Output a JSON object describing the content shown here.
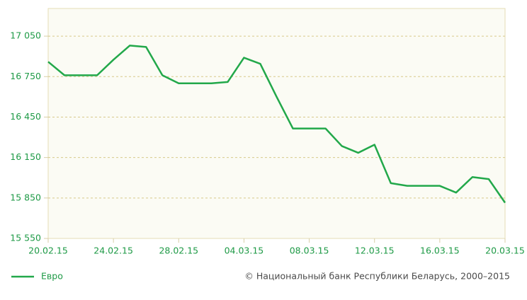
{
  "chart_data": {
    "type": "line",
    "source": "© Национальный банк Республики Беларусь, 2000–2015",
    "categories": [
      "20.02.15",
      null,
      null,
      null,
      "24.02.15",
      null,
      null,
      null,
      "28.02.15",
      null,
      null,
      null,
      "04.03.15",
      null,
      null,
      null,
      "08.03.15",
      null,
      null,
      null,
      "12.03.15",
      null,
      null,
      null,
      "16.03.15",
      null,
      null,
      null,
      "20.03.15"
    ],
    "series": [
      {
        "name": "Евро",
        "color": "#22a84a",
        "values": [
          16860,
          16760,
          16760,
          16760,
          16875,
          16980,
          16970,
          16760,
          16700,
          16700,
          16700,
          16710,
          16890,
          16845,
          16600,
          16365,
          16365,
          16365,
          16235,
          16185,
          16245,
          15960,
          15940,
          15940,
          15940,
          15890,
          16005,
          15990,
          15815
        ]
      }
    ],
    "ylim": [
      15550,
      17255
    ],
    "yticks": [
      {
        "value": 15550,
        "label": "15 550"
      },
      {
        "value": 15850,
        "label": "15 850"
      },
      {
        "value": 16150,
        "label": "16 150"
      },
      {
        "value": 16450,
        "label": "16 450"
      },
      {
        "value": 16750,
        "label": "16 750"
      },
      {
        "value": 17050,
        "label": "17 050"
      }
    ],
    "grid": true
  }
}
